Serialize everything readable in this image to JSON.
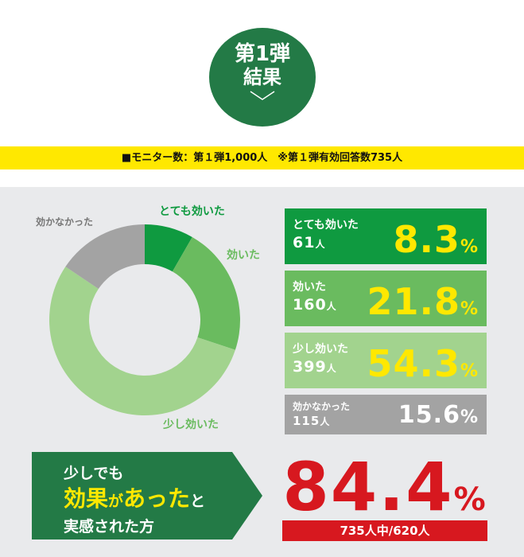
{
  "badge": {
    "line1": "第1弾",
    "line2": "結果"
  },
  "banner": "■モニター数：第１弾1,000人　※第１弾有効回答数735人",
  "chart_data": {
    "type": "pie",
    "categories": [
      "とても効いた",
      "効いた",
      "少し効いた",
      "効かなかった"
    ],
    "values": [
      8.3,
      21.8,
      54.3,
      15.6
    ],
    "value_unit": "%",
    "colors": [
      "#0f9a40",
      "#6abb5f",
      "#a2d38e",
      "#a3a3a3"
    ],
    "counts": [
      61,
      160,
      399,
      115
    ],
    "count_unit": "人"
  },
  "callout": {
    "line1": "少しでも",
    "line2": [
      "効果",
      "が",
      "あった",
      "と"
    ],
    "line3": "実感された方"
  },
  "total": {
    "value": 84.4,
    "unit": "%",
    "note": "735人中/620人"
  }
}
